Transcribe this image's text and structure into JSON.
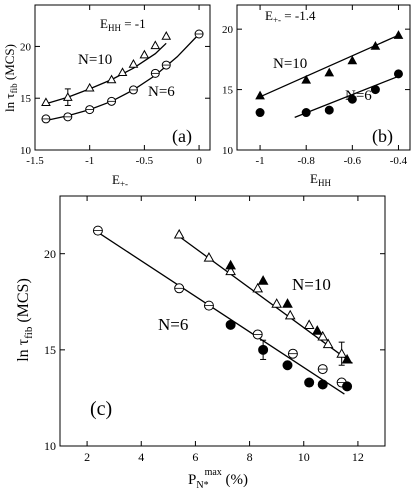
{
  "chart_data": [
    {
      "panel": "(a)",
      "type": "scatter",
      "annotation": "E_HH = -1",
      "xlabel": "E_+-",
      "ylabel": "ln τ_fib (MCS)",
      "xlim": [
        -1.5,
        0.1
      ],
      "ylim": [
        10,
        24
      ],
      "xticks": [
        -1.5,
        -1,
        -0.5,
        0
      ],
      "xtick_labels": [
        "-1.5",
        "-1",
        "-0.5",
        "0"
      ],
      "yticks": [
        10,
        15,
        20
      ],
      "ytick_labels": [
        "10",
        "15",
        "20"
      ],
      "series": [
        {
          "name": "N=10",
          "marker": "open-triangle",
          "x": [
            -1.4,
            -1.2,
            -1.0,
            -0.8,
            -0.7,
            -0.6,
            -0.5,
            -0.4,
            -0.3
          ],
          "y": [
            14.6,
            15.1,
            16.0,
            16.8,
            17.5,
            18.3,
            19.2,
            20.1,
            21.0
          ],
          "errorbar_index": 1,
          "errorbar_halfwidth": 0.8
        },
        {
          "name": "N=6",
          "marker": "open-circle",
          "x": [
            -1.4,
            -1.2,
            -1.0,
            -0.8,
            -0.6,
            -0.4,
            -0.3,
            0.0
          ],
          "y": [
            13.0,
            13.2,
            13.9,
            14.7,
            15.8,
            17.4,
            18.2,
            21.2
          ]
        }
      ],
      "fit_lines": [
        {
          "x": [
            -1.42,
            -1.2,
            -1.0,
            -0.8,
            -0.6,
            -0.4,
            -0.3
          ],
          "y": [
            14.4,
            15.1,
            15.9,
            16.8,
            17.9,
            19.3,
            20.3
          ]
        },
        {
          "x": [
            -1.42,
            -1.2,
            -1.0,
            -0.8,
            -0.6,
            -0.4,
            -0.2,
            0.0
          ],
          "y": [
            12.8,
            13.3,
            13.9,
            14.7,
            15.8,
            17.2,
            19.0,
            21.2
          ]
        }
      ]
    },
    {
      "panel": "(b)",
      "type": "scatter",
      "annotation": "E_+- = -1.4",
      "xlabel": "E_HH",
      "xlim": [
        -1.1,
        -0.35
      ],
      "ylim": [
        10,
        22
      ],
      "xticks": [
        -1,
        -0.8,
        -0.6,
        -0.4
      ],
      "xtick_labels": [
        "-1",
        "-0.8",
        "-0.6",
        "-0.4"
      ],
      "yticks": [
        10,
        15,
        20
      ],
      "ytick_labels": [
        "10",
        "15",
        "20"
      ],
      "series": [
        {
          "name": "N=10",
          "marker": "filled-triangle",
          "x": [
            -1.0,
            -0.8,
            -0.7,
            -0.6,
            -0.5,
            -0.4
          ],
          "y": [
            14.5,
            15.8,
            16.4,
            17.4,
            18.6,
            19.5
          ]
        },
        {
          "name": "N=6",
          "marker": "filled-circle",
          "x": [
            -1.0,
            -0.8,
            -0.7,
            -0.6,
            -0.5,
            -0.4
          ],
          "y": [
            13.1,
            13.1,
            13.3,
            14.2,
            15.0,
            16.3
          ]
        }
      ],
      "fit_lines": [
        {
          "x": [
            -1.0,
            -0.4
          ],
          "y": [
            14.4,
            19.5
          ]
        },
        {
          "x": [
            -0.85,
            -0.4
          ],
          "y": [
            12.7,
            16.1
          ]
        }
      ]
    },
    {
      "panel": "(c)",
      "type": "scatter",
      "xlabel": "P_N*^max (%)",
      "ylabel": "ln τ_fib (MCS)",
      "xlim": [
        1,
        13
      ],
      "ylim": [
        10,
        23
      ],
      "xticks": [
        2,
        4,
        6,
        8,
        10,
        12
      ],
      "xtick_labels": [
        "2",
        "4",
        "6",
        "8",
        "10",
        "12"
      ],
      "yticks": [
        10,
        15,
        20
      ],
      "ytick_labels": [
        "10",
        "15",
        "20"
      ],
      "series": [
        {
          "name": "N=10 (open)",
          "marker": "open-triangle",
          "x": [
            5.4,
            6.5,
            7.3,
            8.3,
            9.0,
            9.5,
            10.2,
            10.7,
            10.9,
            11.4
          ],
          "y": [
            21.0,
            19.8,
            19.1,
            18.2,
            17.4,
            16.8,
            16.3,
            15.7,
            15.3,
            14.8
          ],
          "errorbar_index": 9,
          "errorbar_halfwidth": 0.6
        },
        {
          "name": "N=10 (filled)",
          "marker": "filled-triangle",
          "x": [
            7.3,
            8.5,
            9.4,
            10.5,
            11.6
          ],
          "y": [
            19.4,
            18.6,
            17.4,
            16.0,
            14.5
          ]
        },
        {
          "name": "N=6 (open)",
          "marker": "open-circle",
          "x": [
            2.4,
            5.4,
            6.5,
            8.3,
            9.6,
            10.7,
            11.4
          ],
          "y": [
            21.2,
            18.2,
            17.3,
            15.8,
            14.8,
            14.0,
            13.3
          ]
        },
        {
          "name": "N=6 (filled)",
          "marker": "filled-circle",
          "x": [
            7.3,
            8.5,
            9.4,
            10.2,
            10.7,
            11.6
          ],
          "y": [
            16.3,
            15.0,
            14.2,
            13.3,
            13.2,
            13.1
          ],
          "errorbar_index": 1,
          "errorbar_halfwidth": 0.5
        }
      ],
      "fit_lines": [
        {
          "x": [
            5.3,
            11.8
          ],
          "y": [
            21.0,
            14.3
          ]
        },
        {
          "x": [
            2.3,
            11.5
          ],
          "y": [
            21.2,
            12.7
          ]
        }
      ],
      "labels": {
        "n10": "N=10",
        "n6": "N=6"
      }
    }
  ],
  "labels": {
    "a_annotation": "E",
    "a_annotation_sub": "HH",
    "a_annotation_tail": " = -1",
    "b_annotation": "E",
    "b_annotation_sub": "+-",
    "b_annotation_tail": " = -1.4",
    "a_panel": "(a)",
    "b_panel": "(b)",
    "c_panel": "(c)",
    "a_n10": "N=10",
    "a_n6": "N=6",
    "b_n10": "N=10",
    "b_n6": "N=6",
    "c_n10": "N=10",
    "c_n6": "N=6",
    "ylabel_ln": "ln τ",
    "ylabel_sub": "fib",
    "ylabel_unit": " (MCS)",
    "a_xlabel": "E",
    "a_xlabel_sub": "+-",
    "b_xlabel": "E",
    "b_xlabel_sub": "HH",
    "c_xlabel": "P",
    "c_xlabel_sub": "N*",
    "c_xlabel_sup": "max",
    "c_xlabel_unit": "  (%)"
  }
}
